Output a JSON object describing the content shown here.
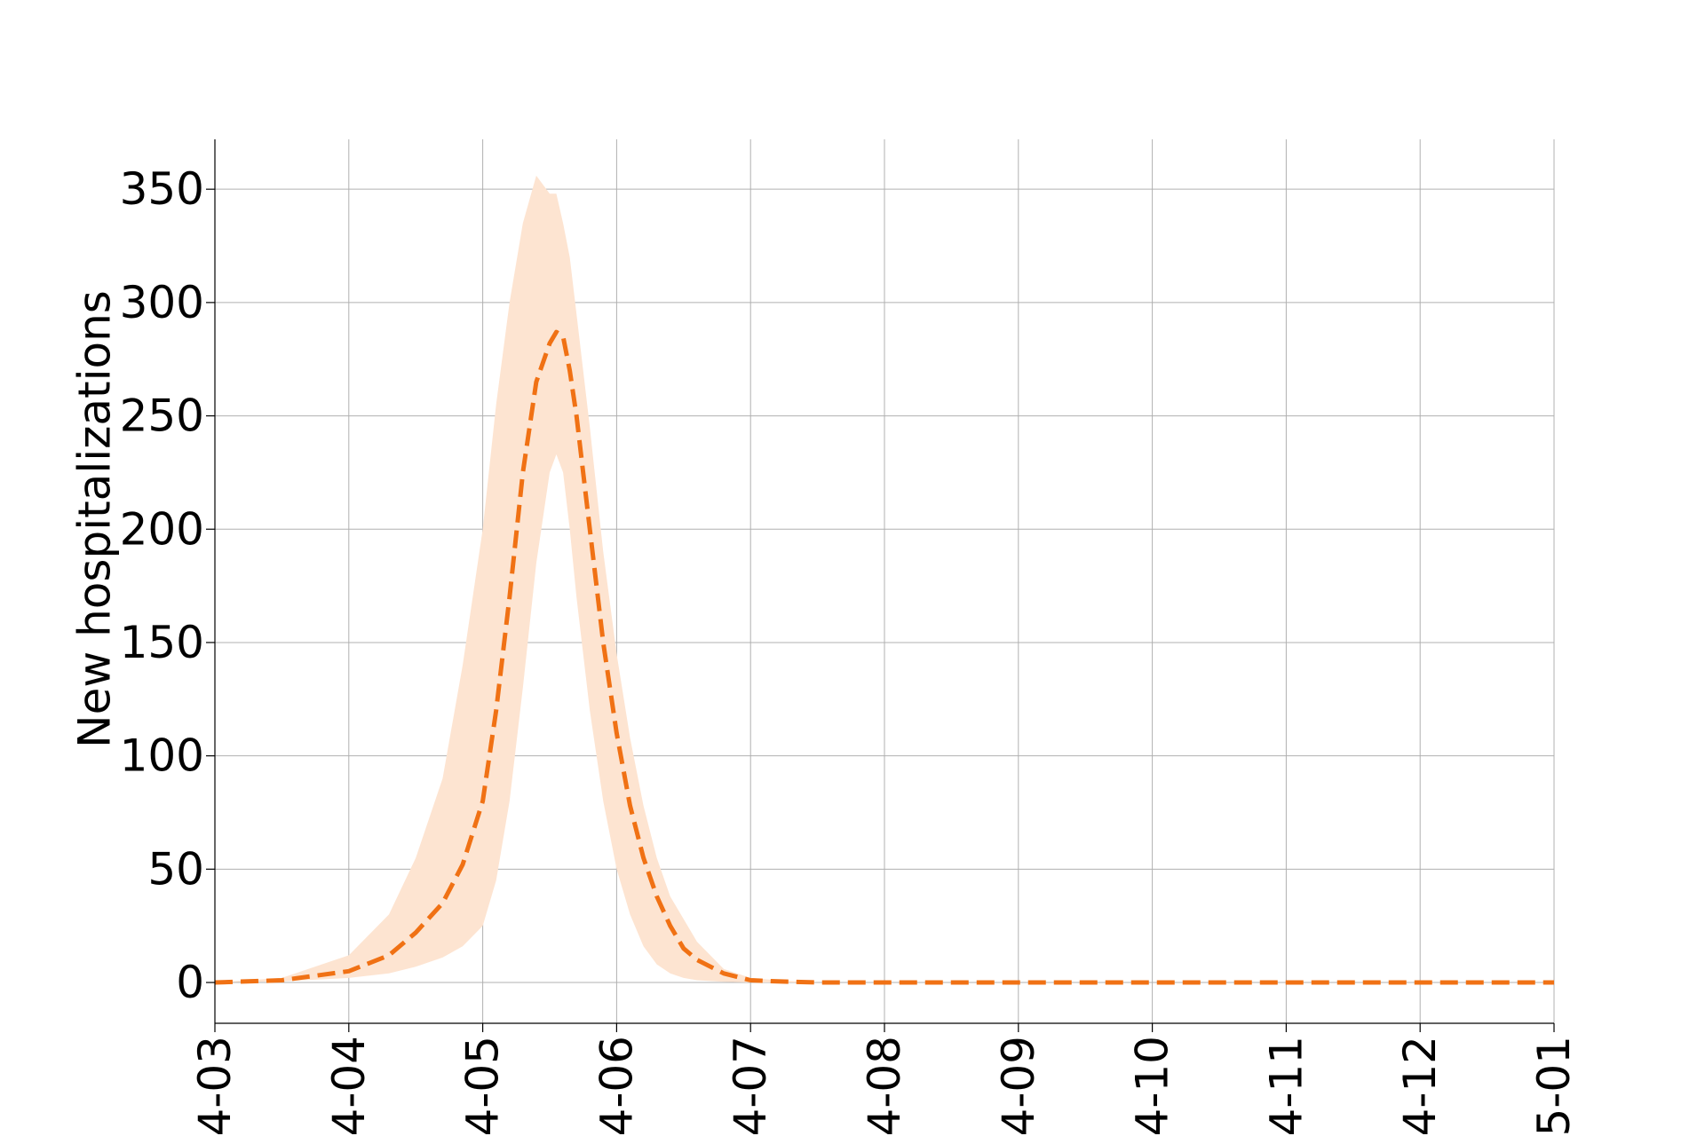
{
  "chart_data": {
    "type": "line",
    "title": "",
    "xlabel": "",
    "ylabel": "New hospitalizations",
    "x_ticks": [
      "4-03",
      "4-04",
      "4-05",
      "4-06",
      "4-07",
      "4-08",
      "4-09",
      "4-10",
      "4-11",
      "4-12",
      "5-01"
    ],
    "y_ticks": [
      0,
      50,
      100,
      150,
      200,
      250,
      300,
      350
    ],
    "xlim": [
      0,
      10
    ],
    "ylim": [
      -18,
      372
    ],
    "grid": true,
    "colors": {
      "line": "#f07114",
      "band": "#fde4d1"
    },
    "series": [
      {
        "style": "dashed",
        "x": [
          0,
          0.5,
          1.0,
          1.3,
          1.5,
          1.7,
          1.85,
          2.0,
          2.1,
          2.2,
          2.3,
          2.4,
          2.5,
          2.55,
          2.6,
          2.65,
          2.7,
          2.8,
          2.9,
          3.0,
          3.1,
          3.2,
          3.3,
          3.4,
          3.5,
          3.6,
          3.8,
          4.0,
          4.2,
          4.5,
          5.0,
          5.5,
          6.0,
          7.0,
          8.0,
          9.0,
          10.0
        ],
        "y": [
          0,
          1,
          5,
          12,
          22,
          35,
          52,
          80,
          120,
          170,
          225,
          265,
          282,
          287,
          285,
          270,
          250,
          200,
          150,
          110,
          78,
          55,
          38,
          25,
          15,
          10,
          4,
          1,
          0.5,
          0,
          0,
          0,
          0,
          0,
          0,
          0,
          0
        ]
      }
    ],
    "band": {
      "x": [
        0,
        0.5,
        1.0,
        1.3,
        1.5,
        1.7,
        1.85,
        2.0,
        2.1,
        2.2,
        2.3,
        2.4,
        2.5,
        2.55,
        2.6,
        2.65,
        2.7,
        2.8,
        2.9,
        3.0,
        3.1,
        3.2,
        3.3,
        3.4,
        3.5,
        3.6,
        3.8,
        4.0,
        4.2,
        4.5,
        5.0,
        5.5,
        6.0,
        7.0,
        8.0,
        9.0,
        10.0
      ],
      "upper": [
        0,
        2,
        12,
        30,
        55,
        90,
        140,
        200,
        255,
        300,
        335,
        356,
        348,
        348,
        335,
        320,
        295,
        245,
        190,
        145,
        108,
        78,
        55,
        38,
        28,
        18,
        6,
        2,
        1,
        0,
        0,
        0,
        0,
        0,
        0,
        0,
        0
      ],
      "lower": [
        0,
        0.5,
        2,
        4,
        7,
        11,
        16,
        25,
        45,
        80,
        130,
        185,
        225,
        233,
        225,
        200,
        170,
        120,
        80,
        50,
        30,
        16,
        8,
        4,
        2,
        1,
        0.3,
        0,
        0,
        0,
        0,
        0,
        0,
        0,
        0,
        0,
        0
      ]
    }
  }
}
